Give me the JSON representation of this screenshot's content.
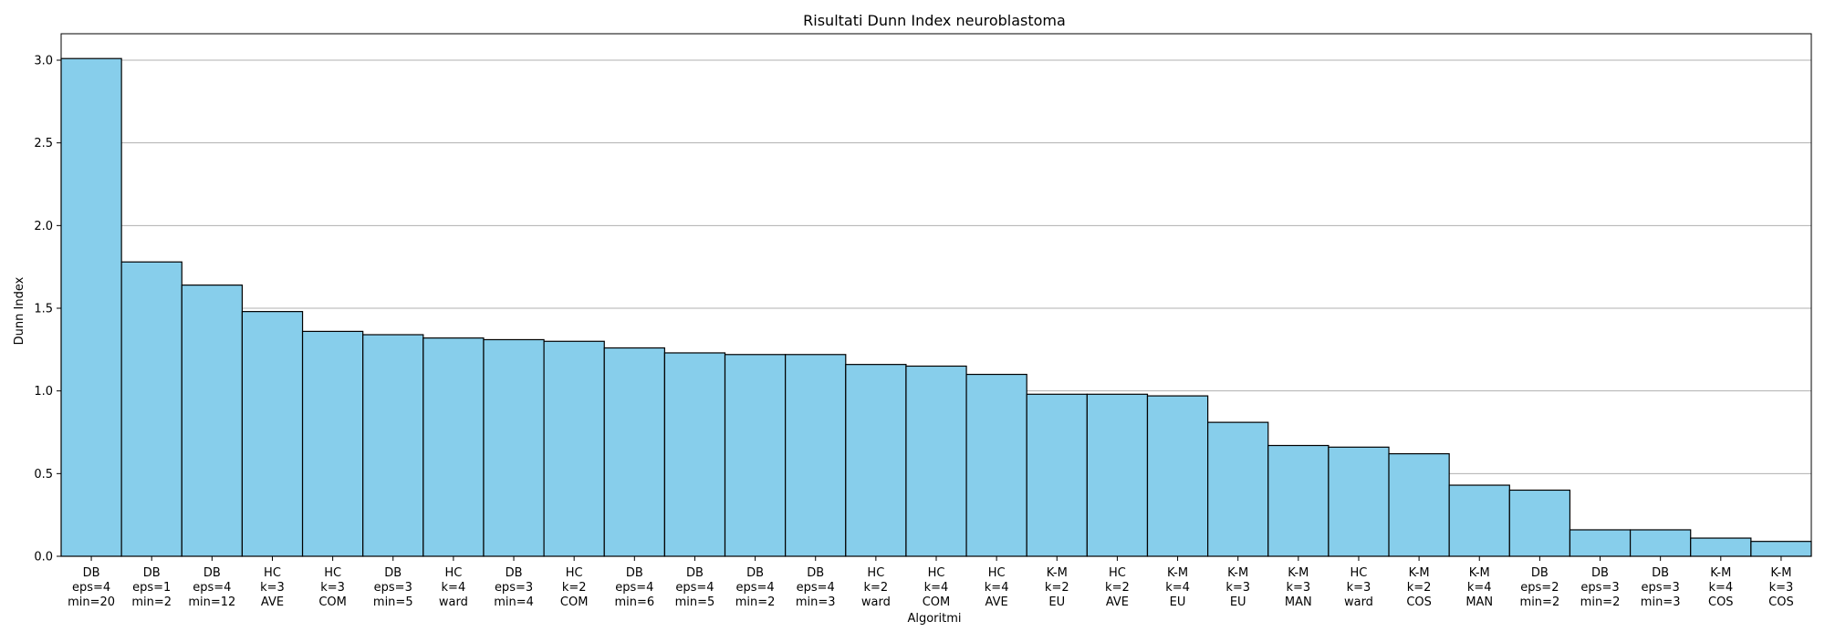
{
  "chart_data": {
    "type": "bar",
    "title": "Risultati Dunn Index neuroblastoma",
    "xlabel": "Algoritmi",
    "ylabel": "Dunn Index",
    "ylim": [
      0,
      3.16
    ],
    "y_ticks": [
      "0.0",
      "0.5",
      "1.0",
      "1.5",
      "2.0",
      "2.5",
      "3.0"
    ],
    "grid": "horizontal",
    "bar_color": "#87ceeb",
    "edge_color": "#000000",
    "categories": [
      [
        "DB",
        "eps=4",
        "min=20"
      ],
      [
        "DB",
        "eps=1",
        "min=2"
      ],
      [
        "DB",
        "eps=4",
        "min=12"
      ],
      [
        "HC",
        "k=3",
        "AVE"
      ],
      [
        "HC",
        "k=3",
        "COM"
      ],
      [
        "DB",
        "eps=3",
        "min=5"
      ],
      [
        "HC",
        "k=4",
        "ward"
      ],
      [
        "DB",
        "eps=3",
        "min=4"
      ],
      [
        "HC",
        "k=2",
        "COM"
      ],
      [
        "DB",
        "eps=4",
        "min=6"
      ],
      [
        "DB",
        "eps=4",
        "min=5"
      ],
      [
        "DB",
        "eps=4",
        "min=2"
      ],
      [
        "DB",
        "eps=4",
        "min=3"
      ],
      [
        "HC",
        "k=2",
        "ward"
      ],
      [
        "HC",
        "k=4",
        "COM"
      ],
      [
        "HC",
        "k=4",
        "AVE"
      ],
      [
        "K-M",
        "k=2",
        "EU"
      ],
      [
        "HC",
        "k=2",
        "AVE"
      ],
      [
        "K-M",
        "k=4",
        "EU"
      ],
      [
        "K-M",
        "k=3",
        "EU"
      ],
      [
        "K-M",
        "k=3",
        "MAN"
      ],
      [
        "HC",
        "k=3",
        "ward"
      ],
      [
        "K-M",
        "k=2",
        "COS"
      ],
      [
        "K-M",
        "k=4",
        "MAN"
      ],
      [
        "DB",
        "eps=2",
        "min=2"
      ],
      [
        "DB",
        "eps=3",
        "min=2"
      ],
      [
        "DB",
        "eps=3",
        "min=3"
      ],
      [
        "K-M",
        "k=4",
        "COS"
      ],
      [
        "K-M",
        "k=3",
        "COS"
      ]
    ],
    "values": [
      3.01,
      1.78,
      1.64,
      1.48,
      1.36,
      1.34,
      1.32,
      1.31,
      1.3,
      1.26,
      1.23,
      1.22,
      1.22,
      1.16,
      1.15,
      1.1,
      0.98,
      0.98,
      0.97,
      0.81,
      0.67,
      0.66,
      0.62,
      0.43,
      0.4,
      0.16,
      0.16,
      0.11,
      0.09
    ]
  }
}
